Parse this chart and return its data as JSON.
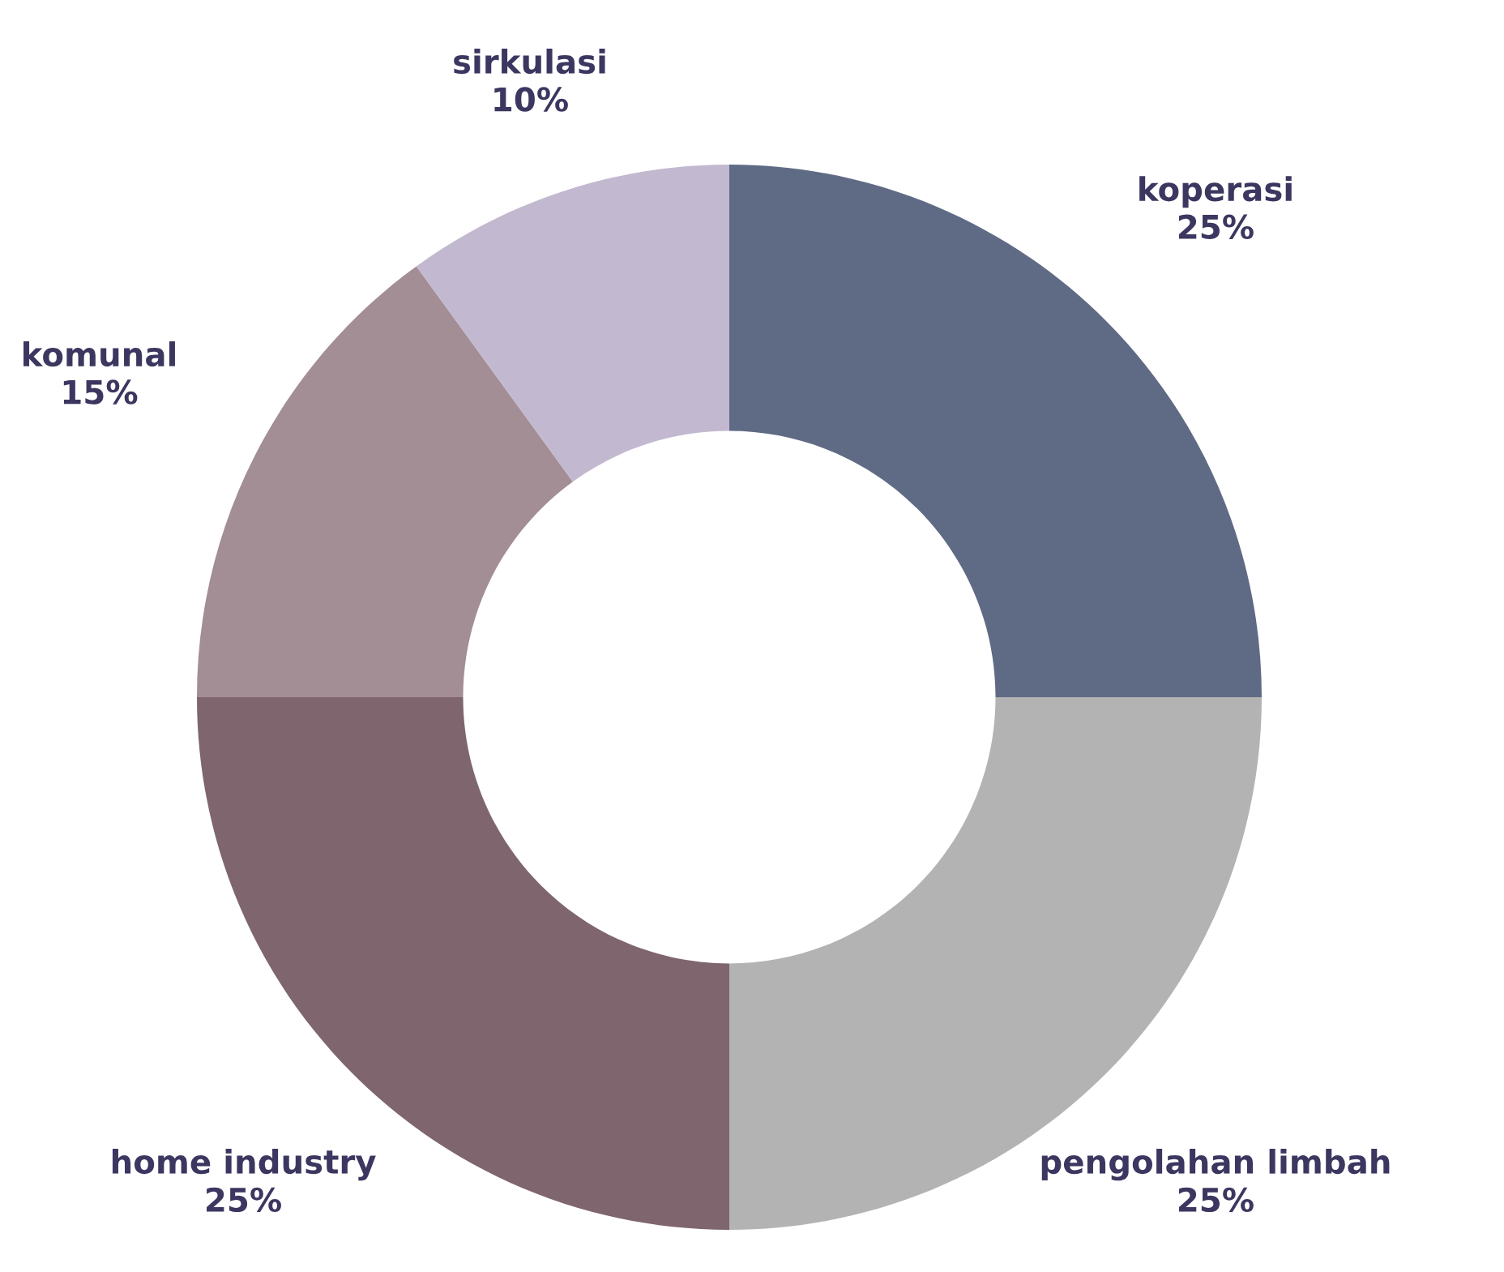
{
  "chart_data": {
    "type": "donut",
    "categories": [
      "koperasi",
      "pengolahan limbah",
      "home industry",
      "komunal",
      "sirkulasi"
    ],
    "values": [
      25,
      25,
      25,
      15,
      10
    ],
    "colors": [
      "#5f6a84",
      "#b3b3b3",
      "#7e656e",
      "#a38e95",
      "#c2b9d0"
    ],
    "value_labels": [
      "25%",
      "25%",
      "25%",
      "15%",
      "10%"
    ]
  }
}
